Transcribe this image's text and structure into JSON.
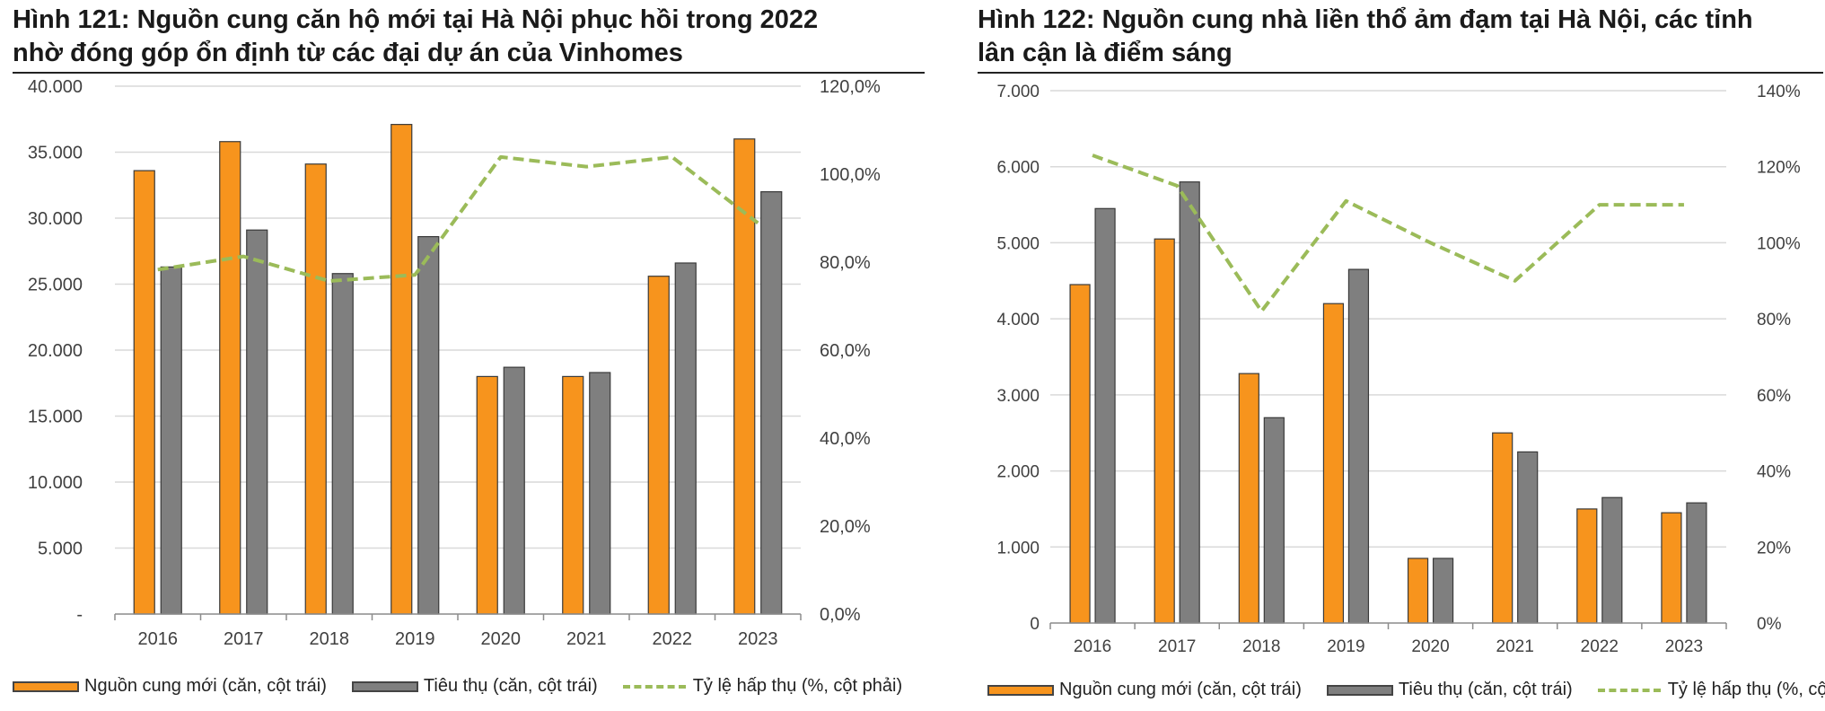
{
  "colors": {
    "supply": "#f7941d",
    "sales": "#7f7f7f",
    "absorption": "#9bbb59",
    "grid": "#d9d9d9",
    "axis": "#8c8c8c",
    "text": "#404040"
  },
  "chart_data": [
    {
      "type": "bar",
      "title": "Hình 121: Nguồn cung căn hộ mới tại Hà Nội phục hồi trong 2022 nhờ đóng góp ổn định từ các đại dự án của Vinhomes",
      "title_lines": [
        "Hình 121: Nguồn cung căn hộ mới tại Hà Nội phục hồi trong 2022",
        "nhờ đóng góp ổn định từ các đại dự án của Vinhomes"
      ],
      "categories": [
        "2016",
        "2017",
        "2018",
        "2019",
        "2020",
        "2021",
        "2022",
        "2023"
      ],
      "series": [
        {
          "name": "Nguồn cung mới (căn, cột trái)",
          "kind": "bar",
          "axis": "left",
          "values": [
            33600,
            35800,
            34100,
            37100,
            18000,
            18000,
            25600,
            36000
          ]
        },
        {
          "name": "Tiêu thụ (căn, cột trái)",
          "kind": "bar",
          "axis": "left",
          "values": [
            26300,
            29100,
            25800,
            28600,
            18700,
            18300,
            26600,
            32000
          ]
        },
        {
          "name": "Tỷ lệ hấp thụ (%, cột phải)",
          "kind": "line",
          "dashed": true,
          "axis": "right",
          "values": [
            78.3,
            81.3,
            75.7,
            77.1,
            103.9,
            101.7,
            103.9,
            88.9
          ]
        }
      ],
      "y_left": {
        "min": 0,
        "max": 40000,
        "ticks": [
          0,
          5000,
          10000,
          15000,
          20000,
          25000,
          30000,
          35000,
          40000
        ],
        "tick_labels": [
          "-",
          "5.000",
          "10.000",
          "15.000",
          "20.000",
          "25.000",
          "30.000",
          "35.000",
          "40.000"
        ]
      },
      "y_right": {
        "min": 0,
        "max": 120,
        "ticks": [
          0,
          20,
          40,
          60,
          80,
          100,
          120
        ],
        "tick_labels": [
          "0,0%",
          "20,0%",
          "40,0%",
          "60,0%",
          "80,0%",
          "100,0%",
          "120,0%"
        ]
      },
      "grid": true,
      "legend_position": "bottom"
    },
    {
      "type": "bar",
      "title": "Hình 122: Nguồn cung nhà liền thổ ảm đạm tại Hà Nội, các tỉnh lân cận là điểm sáng",
      "title_lines": [
        "Hình 122: Nguồn cung nhà liền thổ ảm đạm tại Hà Nội, các tỉnh",
        "lân cận là điểm sáng"
      ],
      "categories": [
        "2016",
        "2017",
        "2018",
        "2019",
        "2020",
        "2021",
        "2022",
        "2023"
      ],
      "series": [
        {
          "name": "Nguồn cung mới (căn, cột trái)",
          "kind": "bar",
          "axis": "left",
          "values": [
            4450,
            5050,
            3280,
            4200,
            850,
            2500,
            1500,
            1450
          ]
        },
        {
          "name": "Tiêu thụ (căn, cột trái)",
          "kind": "bar",
          "axis": "left",
          "values": [
            5450,
            5800,
            2700,
            4650,
            850,
            2250,
            1650,
            1580
          ]
        },
        {
          "name": "Tỷ lệ hấp thụ (%, cột phải)",
          "kind": "line",
          "dashed": true,
          "axis": "right",
          "values": [
            123,
            115,
            82,
            111,
            100,
            90,
            110,
            110
          ]
        }
      ],
      "y_left": {
        "min": 0,
        "max": 7000,
        "ticks": [
          0,
          1000,
          2000,
          3000,
          4000,
          5000,
          6000,
          7000
        ],
        "tick_labels": [
          "0",
          "1.000",
          "2.000",
          "3.000",
          "4.000",
          "5.000",
          "6.000",
          "7.000"
        ]
      },
      "y_right": {
        "min": 0,
        "max": 140,
        "ticks": [
          0,
          20,
          40,
          60,
          80,
          100,
          120,
          140
        ],
        "tick_labels": [
          "0%",
          "20%",
          "40%",
          "60%",
          "80%",
          "100%",
          "120%",
          "140%"
        ]
      },
      "grid": true,
      "legend_position": "bottom"
    }
  ]
}
